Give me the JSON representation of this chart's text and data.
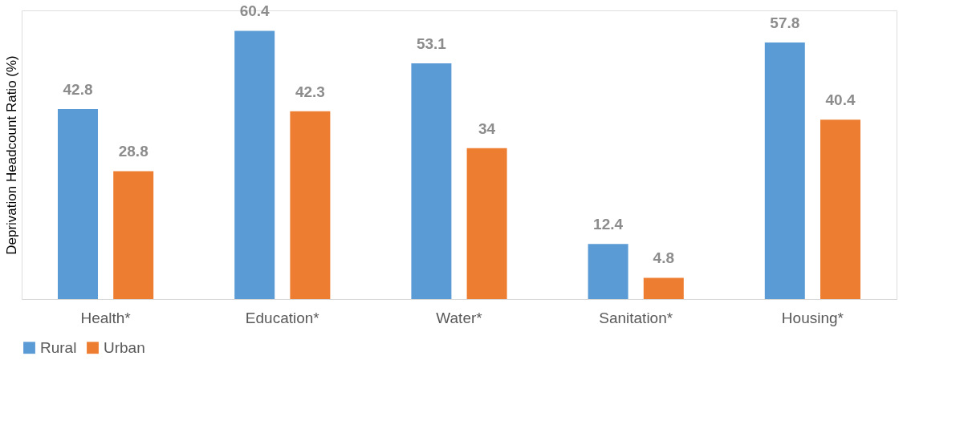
{
  "chart_data": {
    "type": "bar",
    "ylabel": "Deprivation Headcount Ratio (%)",
    "categories": [
      "Health*",
      "Education*",
      "Water*",
      "Sanitation*",
      "Housing*"
    ],
    "series": [
      {
        "name": "Rural",
        "color": "#5b9bd5",
        "values": [
          42.8,
          60.4,
          53.1,
          12.4,
          57.8
        ]
      },
      {
        "name": "Urban",
        "color": "#ed7d31",
        "values": [
          28.8,
          42.3,
          34,
          4.8,
          40.4
        ]
      }
    ],
    "data_labels": true,
    "legend": "bottom",
    "grid": false,
    "tick_labels": "x"
  }
}
